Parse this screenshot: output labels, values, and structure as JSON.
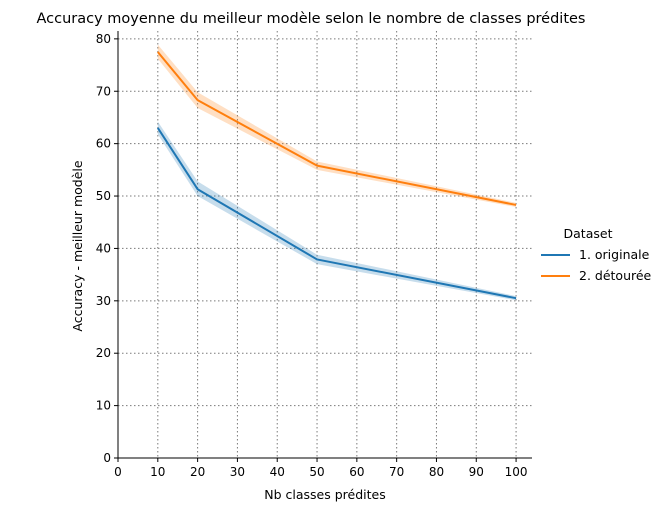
{
  "chart_data": {
    "type": "line",
    "title": "Accuracy moyenne du meilleur modèle selon le nombre de classes prédites",
    "xlabel": "Nb classes prédites",
    "ylabel": "Accuracy - meilleur modèle",
    "xlim": [
      0,
      104
    ],
    "ylim": [
      0,
      81.5
    ],
    "xticks": [
      0,
      10,
      20,
      30,
      40,
      50,
      60,
      70,
      80,
      90,
      100
    ],
    "yticks": [
      0,
      10,
      20,
      30,
      40,
      50,
      60,
      70,
      80
    ],
    "grid": true,
    "legend": {
      "title": "Dataset",
      "placement": "right"
    },
    "x": [
      10,
      20,
      50,
      100
    ],
    "series": [
      {
        "name": "1. originale",
        "color": "#1f77b4",
        "values": [
          63.0,
          51.3,
          37.9,
          30.5
        ],
        "ci_low": [
          61.8,
          50.0,
          37.0,
          30.1
        ],
        "ci_high": [
          64.2,
          52.8,
          38.8,
          30.9
        ]
      },
      {
        "name": "2. détourée",
        "color": "#ff7f0e",
        "values": [
          77.5,
          68.3,
          55.8,
          48.3
        ],
        "ci_low": [
          76.2,
          66.8,
          55.0,
          47.9
        ],
        "ci_high": [
          78.9,
          69.8,
          56.6,
          48.7
        ]
      }
    ]
  }
}
